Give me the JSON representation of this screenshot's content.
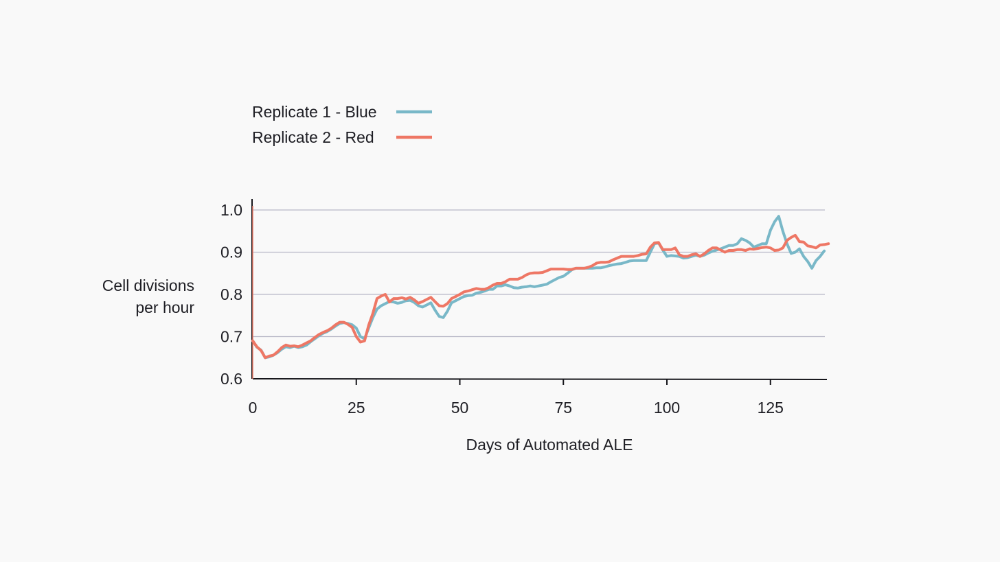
{
  "chart_data": {
    "type": "line",
    "title": "",
    "xlabel": "Days of Automated ALE",
    "ylabel_lines": [
      "Cell divisions",
      "per hour"
    ],
    "xlim": [
      0,
      140
    ],
    "ylim": [
      0.6,
      1.0
    ],
    "x_ticks": [
      0,
      25,
      50,
      75,
      100,
      125
    ],
    "y_ticks": [
      0.6,
      0.7,
      0.8,
      0.9,
      1.0
    ],
    "x_tick_labels": [
      "0",
      "25",
      "50",
      "75",
      "100",
      "125"
    ],
    "y_tick_labels": [
      "0.6",
      "0.7",
      "0.8",
      "0.9",
      "1.0"
    ],
    "grid": "horizontal",
    "legend_position": "top-left",
    "series": [
      {
        "name": "Replicate 1 - Blue",
        "color": "#79b8c8",
        "points": [
          [
            0,
            0.69
          ],
          [
            1,
            0.675
          ],
          [
            2,
            0.668
          ],
          [
            3,
            0.65
          ],
          [
            4,
            0.652
          ],
          [
            5,
            0.656
          ],
          [
            6,
            0.662
          ],
          [
            7,
            0.67
          ],
          [
            8,
            0.676
          ],
          [
            9,
            0.674
          ],
          [
            10,
            0.677
          ],
          [
            11,
            0.674
          ],
          [
            12,
            0.676
          ],
          [
            13,
            0.68
          ],
          [
            14,
            0.688
          ],
          [
            15,
            0.695
          ],
          [
            16,
            0.702
          ],
          [
            17,
            0.708
          ],
          [
            18,
            0.712
          ],
          [
            19,
            0.718
          ],
          [
            20,
            0.725
          ],
          [
            21,
            0.731
          ],
          [
            22,
            0.733
          ],
          [
            23,
            0.731
          ],
          [
            24,
            0.728
          ],
          [
            25,
            0.72
          ],
          [
            26,
            0.7
          ],
          [
            27,
            0.695
          ],
          [
            28,
            0.72
          ],
          [
            29,
            0.745
          ],
          [
            30,
            0.765
          ],
          [
            31,
            0.773
          ],
          [
            32,
            0.778
          ],
          [
            33,
            0.783
          ],
          [
            34,
            0.782
          ],
          [
            35,
            0.779
          ],
          [
            36,
            0.781
          ],
          [
            37,
            0.785
          ],
          [
            38,
            0.786
          ],
          [
            39,
            0.781
          ],
          [
            40,
            0.773
          ],
          [
            41,
            0.77
          ],
          [
            42,
            0.775
          ],
          [
            43,
            0.78
          ],
          [
            44,
            0.763
          ],
          [
            45,
            0.748
          ],
          [
            46,
            0.745
          ],
          [
            47,
            0.76
          ],
          [
            48,
            0.78
          ],
          [
            49,
            0.785
          ],
          [
            50,
            0.79
          ],
          [
            51,
            0.795
          ],
          [
            52,
            0.797
          ],
          [
            53,
            0.798
          ],
          [
            54,
            0.803
          ],
          [
            55,
            0.805
          ],
          [
            56,
            0.808
          ],
          [
            57,
            0.812
          ],
          [
            58,
            0.812
          ],
          [
            59,
            0.82
          ],
          [
            60,
            0.82
          ],
          [
            61,
            0.823
          ],
          [
            62,
            0.82
          ],
          [
            63,
            0.816
          ],
          [
            64,
            0.815
          ],
          [
            65,
            0.817
          ],
          [
            66,
            0.818
          ],
          [
            67,
            0.82
          ],
          [
            68,
            0.818
          ],
          [
            69,
            0.82
          ],
          [
            70,
            0.822
          ],
          [
            71,
            0.824
          ],
          [
            72,
            0.83
          ],
          [
            73,
            0.835
          ],
          [
            74,
            0.84
          ],
          [
            75,
            0.843
          ],
          [
            76,
            0.85
          ],
          [
            77,
            0.858
          ],
          [
            78,
            0.862
          ],
          [
            79,
            0.862
          ],
          [
            80,
            0.862
          ],
          [
            81,
            0.862
          ],
          [
            82,
            0.862
          ],
          [
            83,
            0.863
          ],
          [
            84,
            0.863
          ],
          [
            85,
            0.865
          ],
          [
            86,
            0.868
          ],
          [
            87,
            0.87
          ],
          [
            88,
            0.872
          ],
          [
            89,
            0.873
          ],
          [
            90,
            0.876
          ],
          [
            91,
            0.879
          ],
          [
            92,
            0.88
          ],
          [
            93,
            0.88
          ],
          [
            94,
            0.88
          ],
          [
            95,
            0.88
          ],
          [
            96,
            0.9
          ],
          [
            97,
            0.92
          ],
          [
            98,
            0.922
          ],
          [
            99,
            0.905
          ],
          [
            100,
            0.89
          ],
          [
            101,
            0.892
          ],
          [
            102,
            0.891
          ],
          [
            103,
            0.89
          ],
          [
            104,
            0.886
          ],
          [
            105,
            0.887
          ],
          [
            106,
            0.89
          ],
          [
            107,
            0.893
          ],
          [
            108,
            0.89
          ],
          [
            109,
            0.893
          ],
          [
            110,
            0.898
          ],
          [
            111,
            0.902
          ],
          [
            112,
            0.905
          ],
          [
            113,
            0.908
          ],
          [
            114,
            0.912
          ],
          [
            115,
            0.916
          ],
          [
            116,
            0.916
          ],
          [
            117,
            0.92
          ],
          [
            118,
            0.932
          ],
          [
            119,
            0.928
          ],
          [
            120,
            0.922
          ],
          [
            121,
            0.912
          ],
          [
            122,
            0.916
          ],
          [
            123,
            0.92
          ],
          [
            124,
            0.92
          ],
          [
            125,
            0.952
          ],
          [
            126,
            0.972
          ],
          [
            127,
            0.985
          ],
          [
            128,
            0.95
          ],
          [
            129,
            0.92
          ],
          [
            130,
            0.897
          ],
          [
            131,
            0.9
          ],
          [
            132,
            0.908
          ],
          [
            133,
            0.89
          ],
          [
            134,
            0.878
          ],
          [
            135,
            0.862
          ],
          [
            136,
            0.88
          ],
          [
            137,
            0.89
          ],
          [
            138,
            0.903
          ]
        ]
      },
      {
        "name": "Replicate 2 - Red",
        "color": "#ee7765",
        "points": [
          [
            0,
            0.69
          ],
          [
            1,
            0.676
          ],
          [
            2,
            0.667
          ],
          [
            3,
            0.65
          ],
          [
            4,
            0.654
          ],
          [
            5,
            0.656
          ],
          [
            6,
            0.664
          ],
          [
            7,
            0.674
          ],
          [
            8,
            0.68
          ],
          [
            9,
            0.677
          ],
          [
            10,
            0.678
          ],
          [
            11,
            0.676
          ],
          [
            12,
            0.68
          ],
          [
            13,
            0.685
          ],
          [
            14,
            0.69
          ],
          [
            15,
            0.698
          ],
          [
            16,
            0.705
          ],
          [
            17,
            0.71
          ],
          [
            18,
            0.714
          ],
          [
            19,
            0.72
          ],
          [
            20,
            0.728
          ],
          [
            21,
            0.734
          ],
          [
            22,
            0.734
          ],
          [
            23,
            0.729
          ],
          [
            24,
            0.722
          ],
          [
            25,
            0.7
          ],
          [
            26,
            0.687
          ],
          [
            27,
            0.69
          ],
          [
            28,
            0.727
          ],
          [
            29,
            0.755
          ],
          [
            30,
            0.79
          ],
          [
            31,
            0.796
          ],
          [
            32,
            0.8
          ],
          [
            33,
            0.782
          ],
          [
            34,
            0.79
          ],
          [
            35,
            0.79
          ],
          [
            36,
            0.792
          ],
          [
            37,
            0.789
          ],
          [
            38,
            0.793
          ],
          [
            39,
            0.787
          ],
          [
            40,
            0.779
          ],
          [
            41,
            0.783
          ],
          [
            42,
            0.788
          ],
          [
            43,
            0.793
          ],
          [
            44,
            0.783
          ],
          [
            45,
            0.773
          ],
          [
            46,
            0.772
          ],
          [
            47,
            0.778
          ],
          [
            48,
            0.79
          ],
          [
            49,
            0.795
          ],
          [
            50,
            0.8
          ],
          [
            51,
            0.806
          ],
          [
            52,
            0.808
          ],
          [
            53,
            0.811
          ],
          [
            54,
            0.814
          ],
          [
            55,
            0.812
          ],
          [
            56,
            0.812
          ],
          [
            57,
            0.816
          ],
          [
            58,
            0.822
          ],
          [
            59,
            0.826
          ],
          [
            60,
            0.826
          ],
          [
            61,
            0.83
          ],
          [
            62,
            0.836
          ],
          [
            63,
            0.836
          ],
          [
            64,
            0.836
          ],
          [
            65,
            0.84
          ],
          [
            66,
            0.846
          ],
          [
            67,
            0.85
          ],
          [
            68,
            0.851
          ],
          [
            69,
            0.851
          ],
          [
            70,
            0.852
          ],
          [
            71,
            0.856
          ],
          [
            72,
            0.86
          ],
          [
            73,
            0.86
          ],
          [
            74,
            0.86
          ],
          [
            75,
            0.86
          ],
          [
            76,
            0.859
          ],
          [
            77,
            0.859
          ],
          [
            78,
            0.862
          ],
          [
            79,
            0.862
          ],
          [
            80,
            0.862
          ],
          [
            81,
            0.864
          ],
          [
            82,
            0.868
          ],
          [
            83,
            0.874
          ],
          [
            84,
            0.876
          ],
          [
            85,
            0.876
          ],
          [
            86,
            0.877
          ],
          [
            87,
            0.882
          ],
          [
            88,
            0.886
          ],
          [
            89,
            0.89
          ],
          [
            90,
            0.89
          ],
          [
            91,
            0.89
          ],
          [
            92,
            0.89
          ],
          [
            93,
            0.892
          ],
          [
            94,
            0.895
          ],
          [
            95,
            0.896
          ],
          [
            96,
            0.912
          ],
          [
            97,
            0.922
          ],
          [
            98,
            0.923
          ],
          [
            99,
            0.906
          ],
          [
            100,
            0.906
          ],
          [
            101,
            0.906
          ],
          [
            102,
            0.91
          ],
          [
            103,
            0.894
          ],
          [
            104,
            0.89
          ],
          [
            105,
            0.89
          ],
          [
            106,
            0.894
          ],
          [
            107,
            0.896
          ],
          [
            108,
            0.89
          ],
          [
            109,
            0.896
          ],
          [
            110,
            0.904
          ],
          [
            111,
            0.91
          ],
          [
            112,
            0.91
          ],
          [
            113,
            0.905
          ],
          [
            114,
            0.9
          ],
          [
            115,
            0.904
          ],
          [
            116,
            0.904
          ],
          [
            117,
            0.906
          ],
          [
            118,
            0.906
          ],
          [
            119,
            0.904
          ],
          [
            120,
            0.908
          ],
          [
            121,
            0.907
          ],
          [
            122,
            0.909
          ],
          [
            123,
            0.911
          ],
          [
            124,
            0.912
          ],
          [
            125,
            0.91
          ],
          [
            126,
            0.904
          ],
          [
            127,
            0.905
          ],
          [
            128,
            0.91
          ],
          [
            129,
            0.928
          ],
          [
            130,
            0.935
          ],
          [
            131,
            0.94
          ],
          [
            132,
            0.925
          ],
          [
            133,
            0.924
          ],
          [
            134,
            0.915
          ],
          [
            135,
            0.913
          ],
          [
            136,
            0.91
          ],
          [
            137,
            0.917
          ],
          [
            138,
            0.918
          ],
          [
            139,
            0.92
          ]
        ]
      }
    ]
  }
}
